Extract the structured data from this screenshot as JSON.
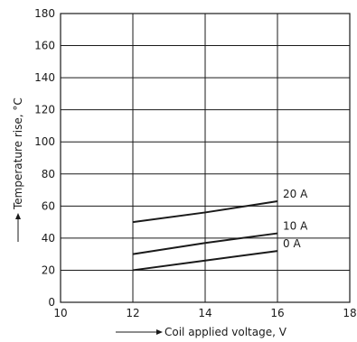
{
  "chart_data": {
    "type": "line",
    "xlabel": "Coil applied voltage, V",
    "ylabel": "Temperature rise, °C",
    "xlim": [
      10,
      18
    ],
    "ylim": [
      0,
      180
    ],
    "xticks": [
      10,
      12,
      14,
      16,
      18
    ],
    "yticks": [
      0,
      20,
      40,
      60,
      80,
      100,
      120,
      140,
      160,
      180
    ],
    "grid": true,
    "legend": "labels at line ends (right)",
    "series": [
      {
        "name": "20 A",
        "x": [
          12,
          14,
          16
        ],
        "y": [
          50,
          56,
          63
        ]
      },
      {
        "name": "10 A",
        "x": [
          12,
          14,
          16
        ],
        "y": [
          30,
          37,
          43
        ]
      },
      {
        "name": "0 A",
        "x": [
          12,
          14,
          16
        ],
        "y": [
          20,
          26,
          32
        ]
      }
    ]
  }
}
